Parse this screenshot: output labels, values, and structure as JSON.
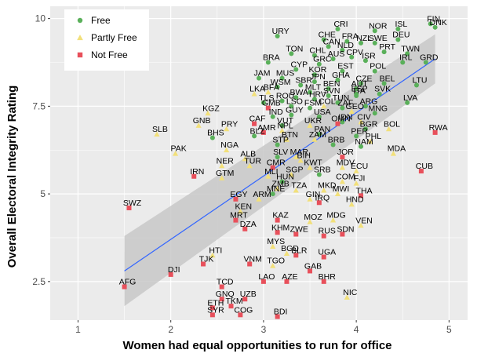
{
  "chart_data": {
    "type": "scatter",
    "xlabel": "Women had equal opportunities to run for office",
    "ylabel": "Overall Electoral Integrity Rating",
    "xlim": [
      0.7,
      5.2
    ],
    "ylim": [
      1.4,
      10.35
    ],
    "x_ticks": [
      "1",
      "2",
      "3",
      "4",
      "5"
    ],
    "y_ticks": [
      "2.5",
      "5",
      "7.5",
      "10"
    ],
    "grid": true,
    "legend_position": "top-left",
    "categories": [
      {
        "name": "Free",
        "color": "#5ab05a",
        "marker": "circle"
      },
      {
        "name": "Partly Free",
        "color": "#f2e07a",
        "marker": "triangle"
      },
      {
        "name": "Not Free",
        "color": "#e8505b",
        "marker": "square"
      }
    ],
    "trend": {
      "x": [
        1.5,
        4.85
      ],
      "y": [
        2.8,
        8.85
      ],
      "band_low": [
        1.8,
        8.15
      ],
      "band_high": [
        3.8,
        9.55
      ],
      "color": "#3366ff",
      "band_color": "#c8c8c8"
    },
    "points": [
      {
        "label": "FIN",
        "x": 4.8,
        "y": 9.85,
        "status": "Free"
      },
      {
        "label": "DNK",
        "x": 4.85,
        "y": 9.75,
        "status": "Free"
      },
      {
        "label": "CRI",
        "x": 3.8,
        "y": 9.7,
        "status": "Free"
      },
      {
        "label": "NOR",
        "x": 4.2,
        "y": 9.65,
        "status": "Free"
      },
      {
        "label": "ISL",
        "x": 4.45,
        "y": 9.7,
        "status": "Free"
      },
      {
        "label": "URY",
        "x": 3.15,
        "y": 9.5,
        "status": "Free"
      },
      {
        "label": "CHE",
        "x": 3.65,
        "y": 9.4,
        "status": "Free"
      },
      {
        "label": "FRA",
        "x": 3.9,
        "y": 9.35,
        "status": "Free"
      },
      {
        "label": "NZL",
        "x": 4.05,
        "y": 9.3,
        "status": "Free"
      },
      {
        "label": "SWE",
        "x": 4.2,
        "y": 9.3,
        "status": "Free"
      },
      {
        "label": "DEU",
        "x": 4.45,
        "y": 9.4,
        "status": "Free"
      },
      {
        "label": "CAN",
        "x": 3.7,
        "y": 9.2,
        "status": "Free"
      },
      {
        "label": "NLD",
        "x": 3.85,
        "y": 9.1,
        "status": "Free"
      },
      {
        "label": "PRT",
        "x": 4.3,
        "y": 9.05,
        "status": "Free"
      },
      {
        "label": "TWN",
        "x": 4.55,
        "y": 9.0,
        "status": "Free"
      },
      {
        "label": "TON",
        "x": 3.3,
        "y": 9.0,
        "status": "Free"
      },
      {
        "label": "CHL",
        "x": 3.55,
        "y": 8.95,
        "status": "Free"
      },
      {
        "label": "AUS",
        "x": 3.75,
        "y": 8.85,
        "status": "Free"
      },
      {
        "label": "CPV",
        "x": 3.95,
        "y": 8.9,
        "status": "Free"
      },
      {
        "label": "ISR",
        "x": 4.1,
        "y": 8.8,
        "status": "Free"
      },
      {
        "label": "IRL",
        "x": 4.5,
        "y": 8.75,
        "status": "Free"
      },
      {
        "label": "GRD",
        "x": 4.75,
        "y": 8.75,
        "status": "Free"
      },
      {
        "label": "BRA",
        "x": 3.05,
        "y": 8.75,
        "status": "Free"
      },
      {
        "label": "GRC",
        "x": 3.6,
        "y": 8.7,
        "status": "Free"
      },
      {
        "label": "CYP",
        "x": 3.35,
        "y": 8.55,
        "status": "Free"
      },
      {
        "label": "KOR",
        "x": 3.55,
        "y": 8.4,
        "status": "Free"
      },
      {
        "label": "EST",
        "x": 3.85,
        "y": 8.5,
        "status": "Free"
      },
      {
        "label": "POL",
        "x": 4.2,
        "y": 8.5,
        "status": "Free"
      },
      {
        "label": "JAM",
        "x": 2.95,
        "y": 8.3,
        "status": "Free"
      },
      {
        "label": "MUS",
        "x": 3.2,
        "y": 8.3,
        "status": "Free"
      },
      {
        "label": "JPN",
        "x": 3.55,
        "y": 8.2,
        "status": "Free"
      },
      {
        "label": "GHA",
        "x": 3.8,
        "y": 8.25,
        "status": "Free"
      },
      {
        "label": "CZE",
        "x": 4.05,
        "y": 8.15,
        "status": "Free"
      },
      {
        "label": "BEL",
        "x": 4.3,
        "y": 8.15,
        "status": "Free"
      },
      {
        "label": "LTU",
        "x": 4.65,
        "y": 8.1,
        "status": "Free"
      },
      {
        "label": "WSM",
        "x": 3.15,
        "y": 8.05,
        "status": "Free"
      },
      {
        "label": "SBR",
        "x": 3.4,
        "y": 8.1,
        "status": "Free"
      },
      {
        "label": "BEN",
        "x": 3.7,
        "y": 8.0,
        "status": "Free"
      },
      {
        "label": "AUT",
        "x": 4.0,
        "y": 8.0,
        "status": "Free"
      },
      {
        "label": "SVK",
        "x": 4.25,
        "y": 7.85,
        "status": "Free"
      },
      {
        "label": "BFA",
        "x": 3.05,
        "y": 7.9,
        "status": "Partly Free"
      },
      {
        "label": "MLT",
        "x": 3.5,
        "y": 7.9,
        "status": "Free"
      },
      {
        "label": "SVN",
        "x": 3.7,
        "y": 7.8,
        "status": "Free"
      },
      {
        "label": "ITA",
        "x": 4.0,
        "y": 7.8,
        "status": "Free"
      },
      {
        "label": "ESP",
        "x": 4.0,
        "y": 7.85,
        "status": "Free"
      },
      {
        "label": "LVA",
        "x": 4.55,
        "y": 7.6,
        "status": "Free"
      },
      {
        "label": "LKA",
        "x": 2.9,
        "y": 7.85,
        "status": "Partly Free"
      },
      {
        "label": "ROU",
        "x": 3.2,
        "y": 7.65,
        "status": "Free"
      },
      {
        "label": "BWA",
        "x": 3.35,
        "y": 7.75,
        "status": "Free"
      },
      {
        "label": "HRV",
        "x": 3.55,
        "y": 7.7,
        "status": "Free"
      },
      {
        "label": "TUN",
        "x": 3.8,
        "y": 7.6,
        "status": "Free"
      },
      {
        "label": "ARG",
        "x": 4.1,
        "y": 7.5,
        "status": "Free"
      },
      {
        "label": "TLS",
        "x": 3.0,
        "y": 7.6,
        "status": "Free"
      },
      {
        "label": "LSO",
        "x": 3.3,
        "y": 7.5,
        "status": "Free"
      },
      {
        "label": "FSM",
        "x": 3.5,
        "y": 7.45,
        "status": "Free"
      },
      {
        "label": "ZAF",
        "x": 3.85,
        "y": 7.45,
        "status": "Free"
      },
      {
        "label": "GMB",
        "x": 3.05,
        "y": 7.45,
        "status": "Not Free"
      },
      {
        "label": "COL",
        "x": 3.65,
        "y": 7.5,
        "status": "Partly Free"
      },
      {
        "label": "GEO",
        "x": 3.95,
        "y": 7.35,
        "status": "Partly Free"
      },
      {
        "label": "MNG",
        "x": 4.2,
        "y": 7.3,
        "status": "Free"
      },
      {
        "label": "KGZ",
        "x": 2.4,
        "y": 7.3,
        "status": "Partly Free"
      },
      {
        "label": "IND",
        "x": 3.1,
        "y": 7.2,
        "status": "Free"
      },
      {
        "label": "GUY",
        "x": 3.3,
        "y": 7.25,
        "status": "Free"
      },
      {
        "label": "USA",
        "x": 3.6,
        "y": 7.2,
        "status": "Free"
      },
      {
        "label": "OMN",
        "x": 3.8,
        "y": 7.0,
        "status": "Not Free"
      },
      {
        "label": "IDN",
        "x": 3.85,
        "y": 7.05,
        "status": "Free"
      },
      {
        "label": "CIV",
        "x": 4.05,
        "y": 7.05,
        "status": "Partly Free"
      },
      {
        "label": "GNB",
        "x": 2.3,
        "y": 6.95,
        "status": "Partly Free"
      },
      {
        "label": "CAF",
        "x": 2.9,
        "y": 7.0,
        "status": "Not Free"
      },
      {
        "label": "VUT",
        "x": 3.2,
        "y": 6.95,
        "status": "Free"
      },
      {
        "label": "UKR",
        "x": 3.5,
        "y": 6.95,
        "status": "Partly Free"
      },
      {
        "label": "BGR",
        "x": 4.1,
        "y": 6.85,
        "status": "Free"
      },
      {
        "label": "BOL",
        "x": 4.35,
        "y": 6.85,
        "status": "Partly Free"
      },
      {
        "label": "PRY",
        "x": 2.6,
        "y": 6.85,
        "status": "Partly Free"
      },
      {
        "label": "AMR",
        "x": 3.0,
        "y": 6.75,
        "status": "Not Free"
      },
      {
        "label": "NPL",
        "x": 3.2,
        "y": 6.8,
        "status": "Partly Free"
      },
      {
        "label": "PAN",
        "x": 3.6,
        "y": 6.7,
        "status": "Free"
      },
      {
        "label": "PER",
        "x": 4.0,
        "y": 6.65,
        "status": "Free"
      },
      {
        "label": "RWA",
        "x": 4.85,
        "y": 6.75,
        "status": "Not Free"
      },
      {
        "label": "SLB",
        "x": 1.85,
        "y": 6.7,
        "status": "Partly Free"
      },
      {
        "label": "BHS",
        "x": 2.45,
        "y": 6.6,
        "status": "Free"
      },
      {
        "label": "BLZ",
        "x": 2.9,
        "y": 6.65,
        "status": "Free"
      },
      {
        "label": "BTN",
        "x": 3.25,
        "y": 6.55,
        "status": "Partly Free"
      },
      {
        "label": "ZAM",
        "x": 3.55,
        "y": 6.55,
        "status": "Partly Free"
      },
      {
        "label": "STP",
        "x": 3.15,
        "y": 6.4,
        "status": "Free"
      },
      {
        "label": "BRB",
        "x": 3.75,
        "y": 6.4,
        "status": "Free"
      },
      {
        "label": "NAM",
        "x": 4.05,
        "y": 6.35,
        "status": "Free"
      },
      {
        "label": "PHL",
        "x": 4.15,
        "y": 6.5,
        "status": "Partly Free"
      },
      {
        "label": "PAK",
        "x": 2.05,
        "y": 6.15,
        "status": "Partly Free"
      },
      {
        "label": "NGA",
        "x": 2.6,
        "y": 6.25,
        "status": "Partly Free"
      },
      {
        "label": "ALB",
        "x": 2.8,
        "y": 6.0,
        "status": "Partly Free"
      },
      {
        "label": "SLV",
        "x": 3.15,
        "y": 6.05,
        "status": "Free"
      },
      {
        "label": "MAR",
        "x": 3.35,
        "y": 6.05,
        "status": "Partly Free"
      },
      {
        "label": "JOR",
        "x": 3.85,
        "y": 6.05,
        "status": "Not Free"
      },
      {
        "label": "MDA",
        "x": 4.4,
        "y": 6.15,
        "status": "Partly Free"
      },
      {
        "label": "BIH",
        "x": 3.4,
        "y": 5.95,
        "status": "Partly Free"
      },
      {
        "label": "CMR",
        "x": 3.1,
        "y": 5.75,
        "status": "Not Free"
      },
      {
        "label": "NER",
        "x": 2.55,
        "y": 5.8,
        "status": "Partly Free"
      },
      {
        "label": "TUR",
        "x": 2.85,
        "y": 5.8,
        "status": "Partly Free"
      },
      {
        "label": "KWT",
        "x": 3.5,
        "y": 5.75,
        "status": "Partly Free"
      },
      {
        "label": "MDV",
        "x": 3.85,
        "y": 5.75,
        "status": "Partly Free"
      },
      {
        "label": "ECU",
        "x": 4.0,
        "y": 5.65,
        "status": "Partly Free"
      },
      {
        "label": "CUB",
        "x": 4.7,
        "y": 5.65,
        "status": "Not Free"
      },
      {
        "label": "SGP",
        "x": 3.3,
        "y": 5.55,
        "status": "Partly Free"
      },
      {
        "label": "IRN",
        "x": 2.25,
        "y": 5.5,
        "status": "Not Free"
      },
      {
        "label": "GTM",
        "x": 2.55,
        "y": 5.45,
        "status": "Partly Free"
      },
      {
        "label": "MLI",
        "x": 3.05,
        "y": 5.5,
        "status": "Partly Free"
      },
      {
        "label": "HUN",
        "x": 3.2,
        "y": 5.35,
        "status": "Free"
      },
      {
        "label": "COM",
        "x": 3.85,
        "y": 5.35,
        "status": "Partly Free"
      },
      {
        "label": "FJI",
        "x": 4.0,
        "y": 5.3,
        "status": "Partly Free"
      },
      {
        "label": "SRB",
        "x": 3.6,
        "y": 5.55,
        "status": "Free"
      },
      {
        "label": "ZMB",
        "x": 3.15,
        "y": 5.15,
        "status": "Partly Free"
      },
      {
        "label": "TZA",
        "x": 3.35,
        "y": 5.1,
        "status": "Partly Free"
      },
      {
        "label": "MKD",
        "x": 3.65,
        "y": 5.1,
        "status": "Partly Free"
      },
      {
        "label": "MWI",
        "x": 3.8,
        "y": 5.0,
        "status": "Partly Free"
      },
      {
        "label": "THA",
        "x": 4.05,
        "y": 4.95,
        "status": "Not Free"
      },
      {
        "label": "EGY",
        "x": 2.7,
        "y": 4.85,
        "status": "Not Free"
      },
      {
        "label": "ARM",
        "x": 2.95,
        "y": 4.85,
        "status": "Partly Free"
      },
      {
        "label": "MNE",
        "x": 3.1,
        "y": 5.0,
        "status": "Free"
      },
      {
        "label": "GIN",
        "x": 3.5,
        "y": 4.85,
        "status": "Partly Free"
      },
      {
        "label": "IRQ",
        "x": 3.6,
        "y": 4.75,
        "status": "Not Free"
      },
      {
        "label": "HND",
        "x": 3.95,
        "y": 4.7,
        "status": "Partly Free"
      },
      {
        "label": "SWZ",
        "x": 1.55,
        "y": 4.6,
        "status": "Not Free"
      },
      {
        "label": "KEN",
        "x": 2.75,
        "y": 4.5,
        "status": "Partly Free"
      },
      {
        "label": "MRT",
        "x": 2.7,
        "y": 4.25,
        "status": "Not Free"
      },
      {
        "label": "MOZ",
        "x": 3.5,
        "y": 4.2,
        "status": "Partly Free"
      },
      {
        "label": "MDG",
        "x": 3.75,
        "y": 4.25,
        "status": "Partly Free"
      },
      {
        "label": "VEN",
        "x": 4.05,
        "y": 4.1,
        "status": "Partly Free"
      },
      {
        "label": "DZA",
        "x": 2.8,
        "y": 4.0,
        "status": "Not Free"
      },
      {
        "label": "KAZ",
        "x": 3.15,
        "y": 4.25,
        "status": "Not Free"
      },
      {
        "label": "KHM",
        "x": 3.15,
        "y": 3.9,
        "status": "Not Free"
      },
      {
        "label": "ZWE",
        "x": 3.35,
        "y": 3.85,
        "status": "Not Free"
      },
      {
        "label": "RUS",
        "x": 3.65,
        "y": 3.8,
        "status": "Not Free"
      },
      {
        "label": "SDN",
        "x": 3.85,
        "y": 3.85,
        "status": "Not Free"
      },
      {
        "label": "HTI",
        "x": 2.45,
        "y": 3.25,
        "status": "Partly Free"
      },
      {
        "label": "MYS",
        "x": 3.1,
        "y": 3.5,
        "status": "Partly Free"
      },
      {
        "label": "BGD",
        "x": 3.25,
        "y": 3.3,
        "status": "Partly Free"
      },
      {
        "label": "BLR",
        "x": 3.35,
        "y": 3.25,
        "status": "Not Free"
      },
      {
        "label": "UGA",
        "x": 3.65,
        "y": 3.2,
        "status": "Not Free"
      },
      {
        "label": "VNM",
        "x": 2.85,
        "y": 3.0,
        "status": "Not Free"
      },
      {
        "label": "TGO",
        "x": 3.1,
        "y": 2.95,
        "status": "Partly Free"
      },
      {
        "label": "GAB",
        "x": 3.5,
        "y": 2.8,
        "status": "Not Free"
      },
      {
        "label": "TJK",
        "x": 2.35,
        "y": 3.0,
        "status": "Not Free"
      },
      {
        "label": "DJI",
        "x": 2.0,
        "y": 2.7,
        "status": "Not Free"
      },
      {
        "label": "AFG",
        "x": 1.5,
        "y": 2.35,
        "status": "Not Free"
      },
      {
        "label": "TCD",
        "x": 2.55,
        "y": 2.35,
        "status": "Not Free"
      },
      {
        "label": "LAO",
        "x": 3.0,
        "y": 2.5,
        "status": "Not Free"
      },
      {
        "label": "AZE",
        "x": 3.25,
        "y": 2.5,
        "status": "Not Free"
      },
      {
        "label": "BHR",
        "x": 3.65,
        "y": 2.5,
        "status": "Not Free"
      },
      {
        "label": "GNQ",
        "x": 2.55,
        "y": 2.0,
        "status": "Not Free"
      },
      {
        "label": "UZB",
        "x": 2.8,
        "y": 2.0,
        "status": "Not Free"
      },
      {
        "label": "NIC",
        "x": 3.9,
        "y": 2.05,
        "status": "Partly Free"
      },
      {
        "label": "ETH",
        "x": 2.45,
        "y": 1.75,
        "status": "Not Free"
      },
      {
        "label": "TKM",
        "x": 2.65,
        "y": 1.8,
        "status": "Not Free"
      },
      {
        "label": "SYR",
        "x": 2.45,
        "y": 1.55,
        "status": "Not Free"
      },
      {
        "label": "COG",
        "x": 2.75,
        "y": 1.55,
        "status": "Not Free"
      },
      {
        "label": "BDI",
        "x": 3.15,
        "y": 1.5,
        "status": "Not Free"
      }
    ]
  }
}
